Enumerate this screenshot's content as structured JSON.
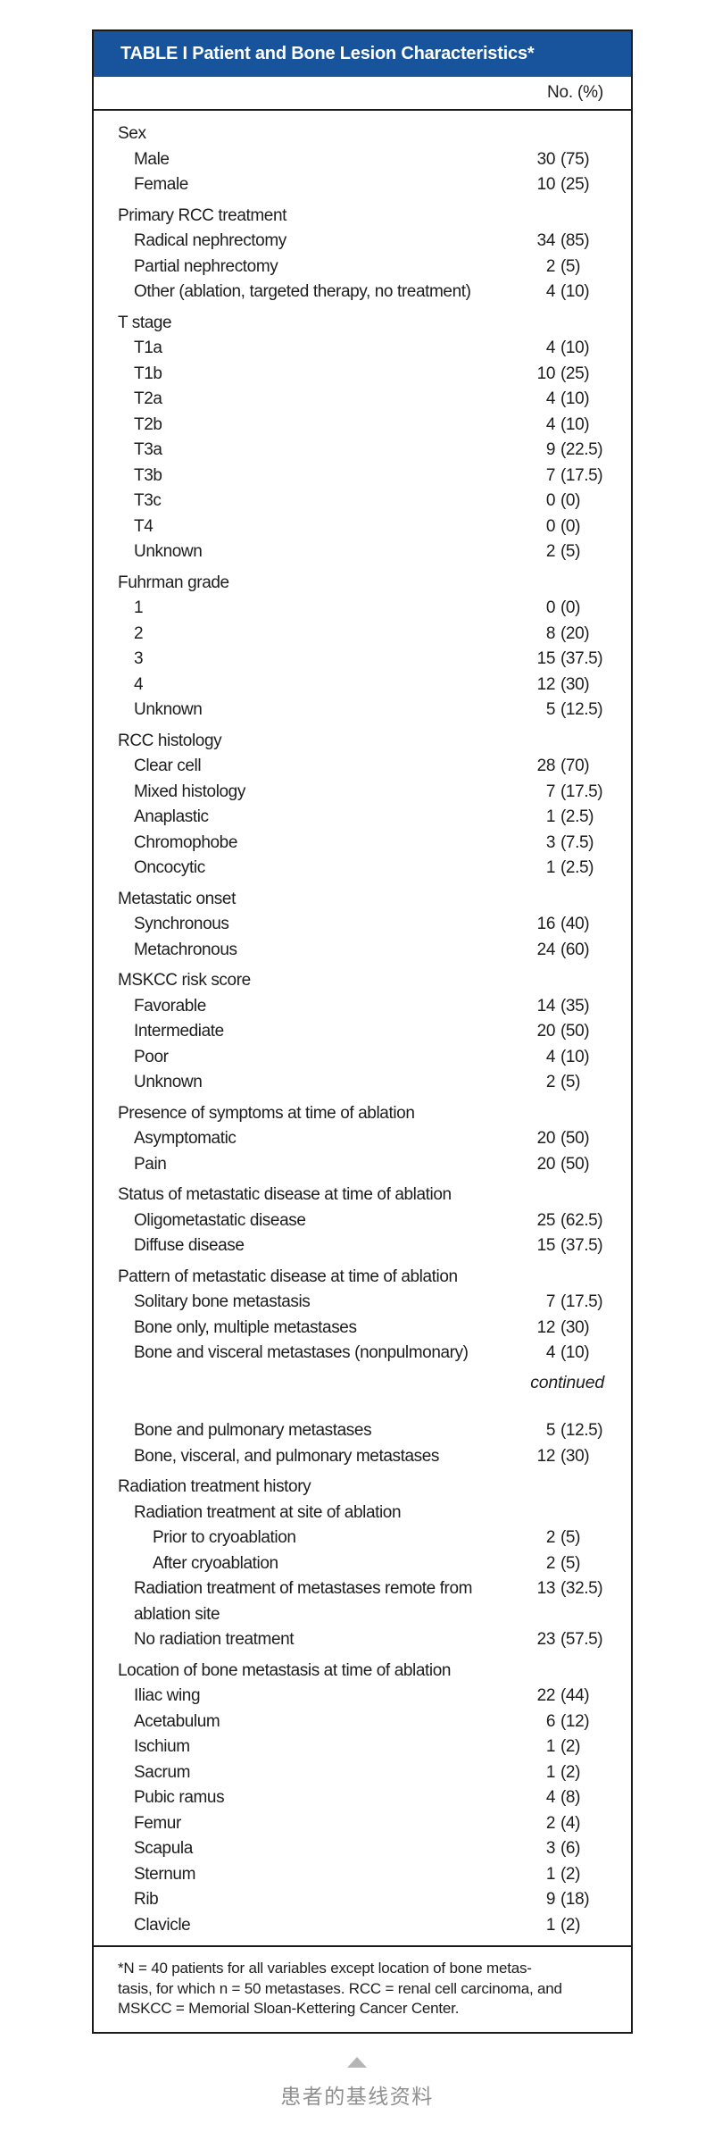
{
  "table": {
    "title": "TABLE I Patient and Bone Lesion Characteristics*",
    "column_header": "No. (%)",
    "colors": {
      "title_bar_bg": "#17549b",
      "title_text": "#ffffff",
      "border": "#1a1a1a",
      "body_text": "#1d1d1d"
    },
    "rows": [
      {
        "type": "category",
        "label": "Sex"
      },
      {
        "type": "item",
        "indent": 1,
        "label": "Male",
        "value": "30 (75)"
      },
      {
        "type": "item",
        "indent": 1,
        "label": "Female",
        "value": "10 (25)"
      },
      {
        "type": "category",
        "label": "Primary RCC treatment"
      },
      {
        "type": "item",
        "indent": 1,
        "label": "Radical nephrectomy",
        "value": "34 (85)"
      },
      {
        "type": "item",
        "indent": 1,
        "label": "Partial nephrectomy",
        "value": "2 (5)"
      },
      {
        "type": "item",
        "indent": 1,
        "label": "Other (ablation, targeted therapy, no treatment)",
        "value": "4 (10)"
      },
      {
        "type": "category",
        "label": "T stage"
      },
      {
        "type": "item",
        "indent": 1,
        "label": "T1a",
        "value": "4 (10)"
      },
      {
        "type": "item",
        "indent": 1,
        "label": "T1b",
        "value": "10 (25)"
      },
      {
        "type": "item",
        "indent": 1,
        "label": "T2a",
        "value": "4 (10)"
      },
      {
        "type": "item",
        "indent": 1,
        "label": "T2b",
        "value": "4 (10)"
      },
      {
        "type": "item",
        "indent": 1,
        "label": "T3a",
        "value": "9 (22.5)"
      },
      {
        "type": "item",
        "indent": 1,
        "label": "T3b",
        "value": "7 (17.5)"
      },
      {
        "type": "item",
        "indent": 1,
        "label": "T3c",
        "value": "0 (0)"
      },
      {
        "type": "item",
        "indent": 1,
        "label": "T4",
        "value": "0 (0)"
      },
      {
        "type": "item",
        "indent": 1,
        "label": "Unknown",
        "value": "2 (5)"
      },
      {
        "type": "category",
        "label": "Fuhrman grade"
      },
      {
        "type": "item",
        "indent": 1,
        "label": "1",
        "value": "0 (0)"
      },
      {
        "type": "item",
        "indent": 1,
        "label": "2",
        "value": "8 (20)"
      },
      {
        "type": "item",
        "indent": 1,
        "label": "3",
        "value": "15 (37.5)"
      },
      {
        "type": "item",
        "indent": 1,
        "label": "4",
        "value": "12 (30)"
      },
      {
        "type": "item",
        "indent": 1,
        "label": "Unknown",
        "value": "5 (12.5)"
      },
      {
        "type": "category",
        "label": "RCC histology"
      },
      {
        "type": "item",
        "indent": 1,
        "label": "Clear cell",
        "value": "28 (70)"
      },
      {
        "type": "item",
        "indent": 1,
        "label": "Mixed histology",
        "value": "7 (17.5)"
      },
      {
        "type": "item",
        "indent": 1,
        "label": "Anaplastic",
        "value": "1 (2.5)"
      },
      {
        "type": "item",
        "indent": 1,
        "label": "Chromophobe",
        "value": "3 (7.5)"
      },
      {
        "type": "item",
        "indent": 1,
        "label": "Oncocytic",
        "value": "1 (2.5)"
      },
      {
        "type": "category",
        "label": "Metastatic onset"
      },
      {
        "type": "item",
        "indent": 1,
        "label": "Synchronous",
        "value": "16 (40)"
      },
      {
        "type": "item",
        "indent": 1,
        "label": "Metachronous",
        "value": "24 (60)"
      },
      {
        "type": "category",
        "label": "MSKCC risk score"
      },
      {
        "type": "item",
        "indent": 1,
        "label": "Favorable",
        "value": "14 (35)"
      },
      {
        "type": "item",
        "indent": 1,
        "label": "Intermediate",
        "value": "20 (50)"
      },
      {
        "type": "item",
        "indent": 1,
        "label": "Poor",
        "value": "4 (10)"
      },
      {
        "type": "item",
        "indent": 1,
        "label": "Unknown",
        "value": "2 (5)"
      },
      {
        "type": "category",
        "label": "Presence of symptoms at time of ablation"
      },
      {
        "type": "item",
        "indent": 1,
        "label": "Asymptomatic",
        "value": "20 (50)"
      },
      {
        "type": "item",
        "indent": 1,
        "label": "Pain",
        "value": "20 (50)"
      },
      {
        "type": "category",
        "label": "Status of metastatic disease at time of ablation"
      },
      {
        "type": "item",
        "indent": 1,
        "label": "Oligometastatic disease",
        "value": "25 (62.5)"
      },
      {
        "type": "item",
        "indent": 1,
        "label": "Diffuse disease",
        "value": "15 (37.5)"
      },
      {
        "type": "category",
        "label": "Pattern of metastatic disease at time of ablation"
      },
      {
        "type": "item",
        "indent": 1,
        "label": "Solitary bone metastasis",
        "value": "7 (17.5)"
      },
      {
        "type": "item",
        "indent": 1,
        "label": "Bone only, multiple metastases",
        "value": "12 (30)"
      },
      {
        "type": "item",
        "indent": 1,
        "label": "Bone and visceral metastases (nonpulmonary)",
        "value": "4 (10)"
      },
      {
        "type": "continued",
        "label": "continued"
      },
      {
        "type": "item",
        "indent": 1,
        "label": "Bone and pulmonary metastases",
        "value": "5 (12.5)"
      },
      {
        "type": "item",
        "indent": 1,
        "label": "Bone, visceral, and pulmonary metastases",
        "value": "12 (30)"
      },
      {
        "type": "category",
        "label": "Radiation treatment history"
      },
      {
        "type": "item",
        "indent": 1,
        "label": "Radiation treatment at site of ablation",
        "value": null
      },
      {
        "type": "item",
        "indent": 2,
        "label": "Prior to cryoablation",
        "value": "2 (5)"
      },
      {
        "type": "item",
        "indent": 2,
        "label": "After cryoablation",
        "value": "2 (5)"
      },
      {
        "type": "item",
        "indent": 1,
        "label": "Radiation treatment of metastases remote from\nablation site",
        "value": "13 (32.5)"
      },
      {
        "type": "item",
        "indent": 1,
        "label": "No radiation treatment",
        "value": "23 (57.5)"
      },
      {
        "type": "category",
        "label": "Location of bone metastasis at time of ablation"
      },
      {
        "type": "item",
        "indent": 1,
        "label": "Iliac wing",
        "value": "22 (44)"
      },
      {
        "type": "item",
        "indent": 1,
        "label": "Acetabulum",
        "value": "6 (12)"
      },
      {
        "type": "item",
        "indent": 1,
        "label": "Ischium",
        "value": "1 (2)"
      },
      {
        "type": "item",
        "indent": 1,
        "label": "Sacrum",
        "value": "1 (2)"
      },
      {
        "type": "item",
        "indent": 1,
        "label": "Pubic ramus",
        "value": "4 (8)"
      },
      {
        "type": "item",
        "indent": 1,
        "label": "Femur",
        "value": "2 (4)"
      },
      {
        "type": "item",
        "indent": 1,
        "label": "Scapula",
        "value": "3 (6)"
      },
      {
        "type": "item",
        "indent": 1,
        "label": "Sternum",
        "value": "1 (2)"
      },
      {
        "type": "item",
        "indent": 1,
        "label": "Rib",
        "value": "9 (18)"
      },
      {
        "type": "item",
        "indent": 1,
        "label": "Clavicle",
        "value": "1 (2)"
      }
    ],
    "footnote_lines": [
      "*N = 40 patients for all variables except location of bone metas-",
      "tasis, for which n = 50 metastases. RCC = renal cell carcinoma, and",
      "MSKCC = Memorial Sloan-Kettering Cancer Center."
    ]
  },
  "caption": {
    "icon": "up-triangle",
    "icon_color": "#b5b5b5",
    "text": "患者的基线资料",
    "text_color": "#8f8f8f"
  }
}
